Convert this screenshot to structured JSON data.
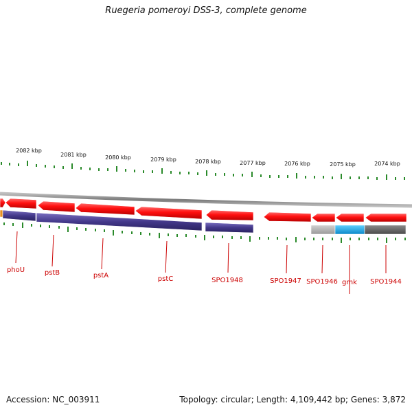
{
  "title": "Ruegeria pomeroyi DSS-3, complete genome",
  "footer": {
    "accession": "Accession: NC_003911",
    "summary": "Topology: circular; Length: 4,109,442 bp; Genes: 3,872"
  },
  "colors": {
    "forward_cds": "#ff1a1a",
    "reverse_cds": "#4a3f8a",
    "backbone": "#888888",
    "tick": "#2a8a2a",
    "label": "#cc0000",
    "grey_feature": "#b8b8b8",
    "cyan_feature": "#1aa7e8",
    "dark_feature": "#666666"
  },
  "scale": {
    "labels": [
      "2082 kbp",
      "2081 kbp",
      "2080 kbp",
      "2079 kbp",
      "2078 kbp",
      "2077 kbp",
      "2076 kbp",
      "2075 kbp",
      "2074 kbp"
    ]
  },
  "genes": [
    {
      "name": "phoU"
    },
    {
      "name": "pstB"
    },
    {
      "name": "pstA"
    },
    {
      "name": "pstC"
    },
    {
      "name": "SPO1948"
    },
    {
      "name": "SPO1947"
    },
    {
      "name": "SPO1946"
    },
    {
      "name": "gmk"
    },
    {
      "name": "SPO1944"
    }
  ]
}
